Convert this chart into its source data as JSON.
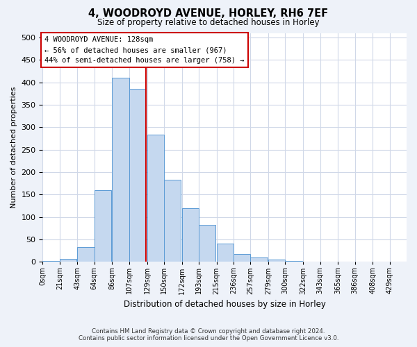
{
  "title1": "4, WOODROYD AVENUE, HORLEY, RH6 7EF",
  "title2": "Size of property relative to detached houses in Horley",
  "xlabel": "Distribution of detached houses by size in Horley",
  "ylabel": "Number of detached properties",
  "footnote1": "Contains HM Land Registry data © Crown copyright and database right 2024.",
  "footnote2": "Contains public sector information licensed under the Open Government Licence v3.0.",
  "annotation_line1": "4 WOODROYD AVENUE: 128sqm",
  "annotation_line2": "← 56% of detached houses are smaller (967)",
  "annotation_line3": "44% of semi-detached houses are larger (758) →",
  "bar_color": "#c5d8ef",
  "bar_edge_color": "#5b9bd5",
  "vline_color": "#cc0000",
  "vline_x": 128,
  "bin_edges": [
    0,
    21,
    43,
    64,
    86,
    107,
    129,
    150,
    172,
    193,
    215,
    236,
    257,
    279,
    300,
    322,
    343,
    365,
    386,
    408,
    429
  ],
  "bar_heights": [
    2,
    7,
    33,
    160,
    410,
    385,
    283,
    183,
    120,
    83,
    40,
    18,
    10,
    5,
    2,
    1,
    0,
    0,
    0,
    0
  ],
  "bin_width": 21,
  "ylim": [
    0,
    510
  ],
  "yticks": [
    0,
    50,
    100,
    150,
    200,
    250,
    300,
    350,
    400,
    450,
    500
  ],
  "tick_labels": [
    "0sqm",
    "21sqm",
    "43sqm",
    "64sqm",
    "86sqm",
    "107sqm",
    "129sqm",
    "150sqm",
    "172sqm",
    "193sqm",
    "215sqm",
    "236sqm",
    "257sqm",
    "279sqm",
    "300sqm",
    "322sqm",
    "343sqm",
    "365sqm",
    "386sqm",
    "408sqm",
    "429sqm"
  ],
  "background_color": "#eef2f9",
  "plot_bg_color": "#ffffff",
  "grid_color": "#d0d8e8"
}
